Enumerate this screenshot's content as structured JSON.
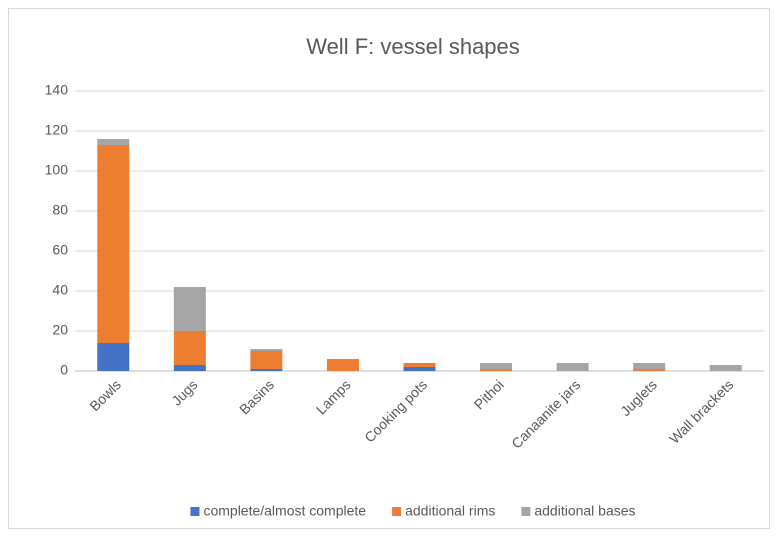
{
  "chart_data": {
    "type": "stacked_bar",
    "title": "Well F: vessel shapes",
    "categories": [
      "Bowls",
      "Jugs",
      "Basins",
      "Lamps",
      "Cooking pots",
      "Pithoi",
      "Canaanite jars",
      "Juglets",
      "Wall brackets"
    ],
    "series": [
      {
        "name": "complete/almost complete",
        "color": "#4472c4",
        "values": [
          14,
          3,
          1,
          0,
          2,
          0,
          0,
          0,
          0
        ]
      },
      {
        "name": "additional rims",
        "color": "#ed7d31",
        "values": [
          99,
          17,
          9,
          6,
          2,
          1,
          0,
          1,
          0
        ]
      },
      {
        "name": "additional bases",
        "color": "#a5a5a5",
        "values": [
          3,
          22,
          1,
          0,
          0,
          3,
          4,
          3,
          3
        ]
      }
    ],
    "ylim": [
      0,
      140
    ],
    "yticks": [
      0,
      20,
      40,
      60,
      80,
      100,
      120,
      140
    ],
    "grid": true,
    "legend": "bottom"
  }
}
